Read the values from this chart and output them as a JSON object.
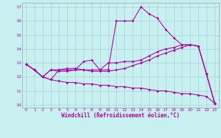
{
  "xlabel": "Windchill (Refroidissement éolien,°C)",
  "background_color": "#c8f0f0",
  "line_color": "#aa00aa",
  "grid_color": "#aadddd",
  "xlim": [
    -0.5,
    23.5
  ],
  "ylim": [
    9.8,
    17.3
  ],
  "yticks": [
    10,
    11,
    12,
    13,
    14,
    15,
    16,
    17
  ],
  "xticks": [
    0,
    1,
    2,
    3,
    4,
    5,
    6,
    7,
    8,
    9,
    10,
    11,
    12,
    13,
    14,
    15,
    16,
    17,
    18,
    19,
    20,
    21,
    22,
    23
  ],
  "series1_x": [
    0,
    1,
    2,
    3,
    4,
    5,
    6,
    7,
    8,
    9,
    10,
    11,
    12,
    13,
    14,
    15,
    16,
    17,
    18,
    19,
    20,
    21,
    22,
    23
  ],
  "series1_y": [
    12.9,
    12.5,
    12.0,
    11.8,
    12.5,
    12.6,
    12.6,
    12.5,
    12.5,
    12.5,
    12.5,
    16.0,
    16.0,
    16.0,
    17.0,
    16.5,
    16.2,
    15.4,
    14.8,
    14.3,
    14.3,
    14.2,
    12.2,
    10.1
  ],
  "series2_x": [
    0,
    1,
    2,
    3,
    4,
    5,
    6,
    7,
    8,
    9,
    10,
    11,
    12,
    13,
    14,
    15,
    16,
    17,
    18,
    19,
    20,
    21,
    22,
    23
  ],
  "series2_y": [
    12.9,
    12.5,
    12.0,
    12.5,
    12.5,
    12.5,
    12.5,
    13.1,
    13.2,
    12.5,
    13.0,
    13.0,
    13.1,
    13.1,
    13.2,
    13.5,
    13.8,
    14.0,
    14.1,
    14.3,
    14.3,
    14.2,
    12.2,
    10.1
  ],
  "series3_x": [
    0,
    1,
    2,
    3,
    4,
    5,
    6,
    7,
    8,
    9,
    10,
    11,
    12,
    13,
    14,
    15,
    16,
    17,
    18,
    19,
    20,
    21,
    22,
    23
  ],
  "series3_y": [
    12.9,
    12.5,
    12.0,
    12.5,
    12.4,
    12.4,
    12.5,
    12.5,
    12.4,
    12.4,
    12.4,
    12.5,
    12.6,
    12.8,
    13.0,
    13.2,
    13.5,
    13.7,
    13.9,
    14.1,
    14.3,
    14.2,
    12.2,
    10.1
  ],
  "series4_x": [
    0,
    1,
    2,
    3,
    4,
    5,
    6,
    7,
    8,
    9,
    10,
    11,
    12,
    13,
    14,
    15,
    16,
    17,
    18,
    19,
    20,
    21,
    22,
    23
  ],
  "series4_y": [
    12.9,
    12.5,
    12.0,
    11.8,
    11.7,
    11.6,
    11.6,
    11.5,
    11.5,
    11.4,
    11.4,
    11.3,
    11.3,
    11.2,
    11.2,
    11.1,
    11.0,
    11.0,
    10.9,
    10.8,
    10.8,
    10.7,
    10.6,
    10.1
  ]
}
